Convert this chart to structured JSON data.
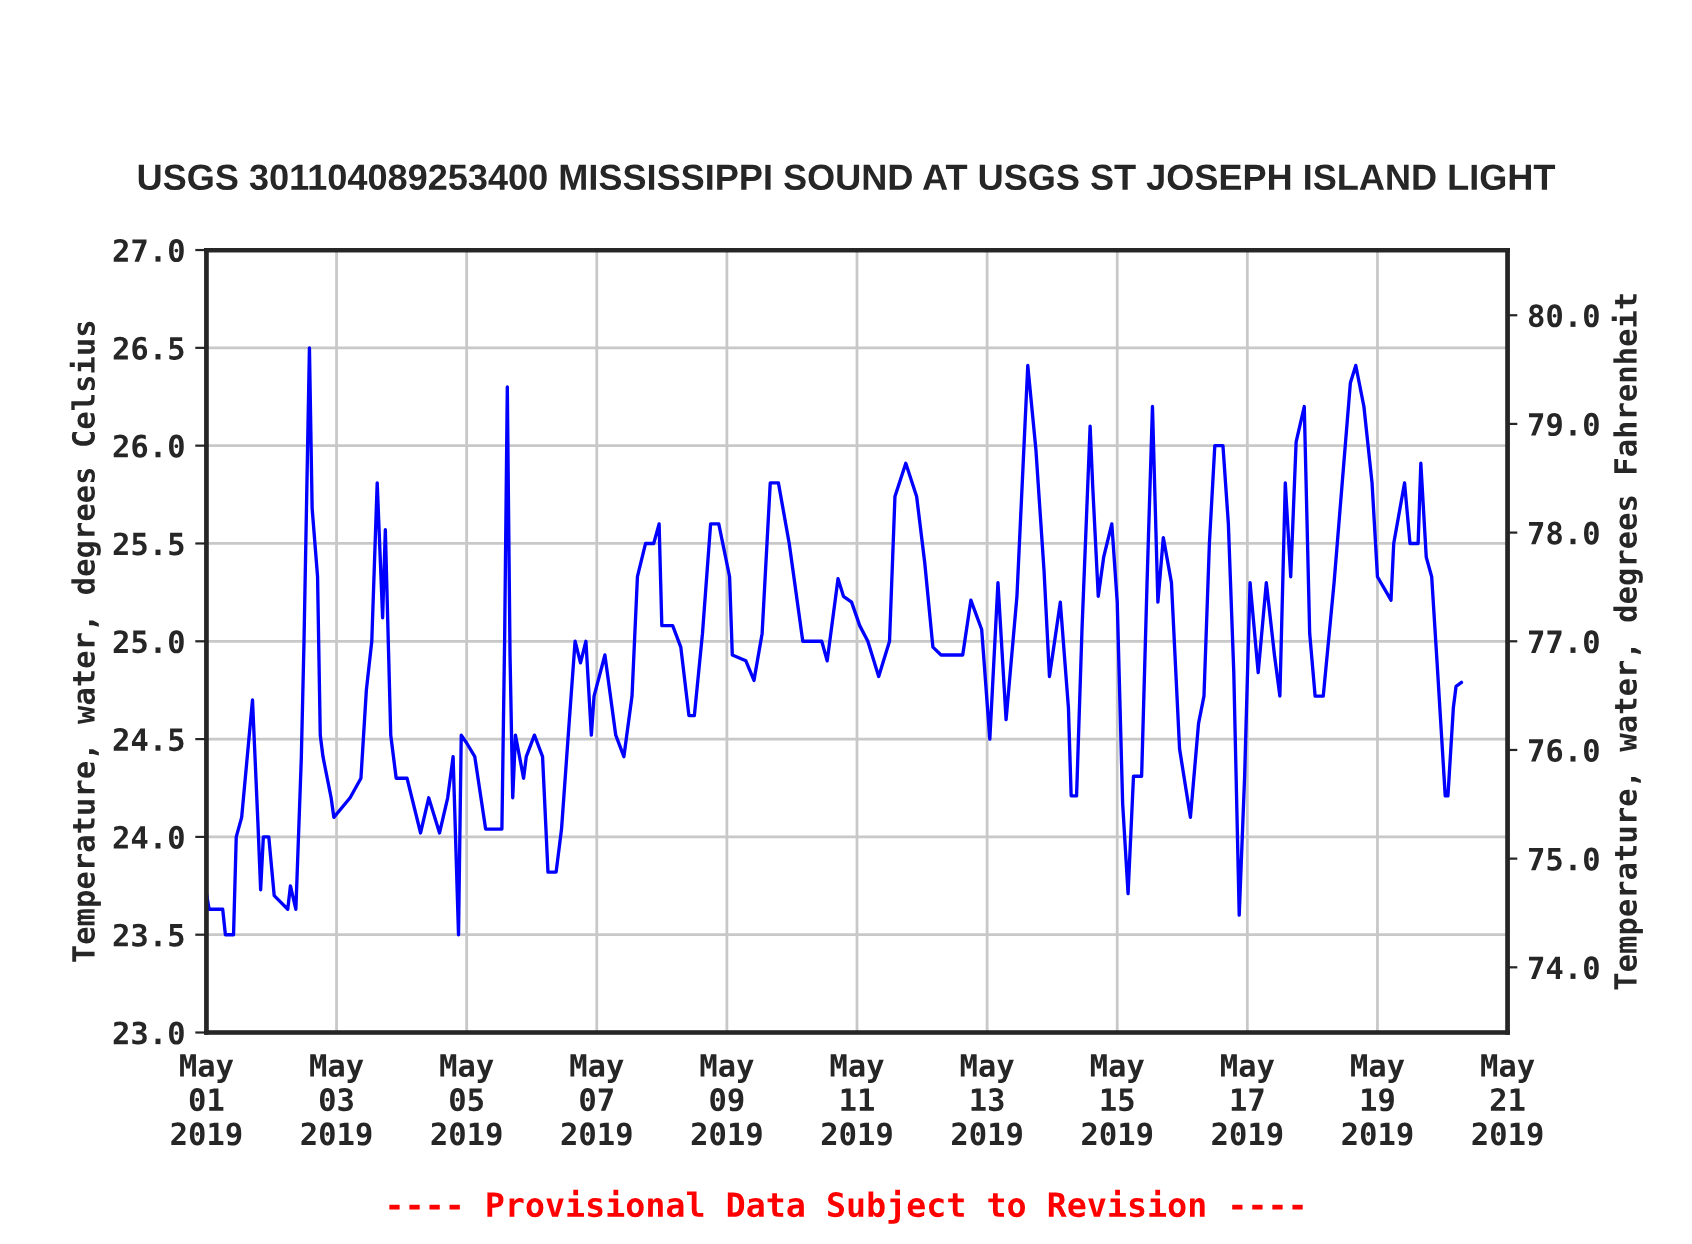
{
  "chart_data": {
    "type": "line",
    "title": "USGS 301104089253400 MISSISSIPPI SOUND AT USGS ST JOSEPH ISLAND LIGHT",
    "ylabel": "Temperature, water, degrees Celsius",
    "y2label": "Temperature, water, degrees Fahrenheit",
    "annotations": [
      "---- Provisional Data Subject to Revision ----"
    ],
    "x": [
      "2019-05-01T00:00",
      "2019-05-01T01:00",
      "2019-05-01T06:00",
      "2019-05-01T07:00",
      "2019-05-01T10:00",
      "2019-05-01T11:00",
      "2019-05-01T13:00",
      "2019-05-01T17:00",
      "2019-05-01T19:00",
      "2019-05-01T20:00",
      "2019-05-01T21:00",
      "2019-05-01T23:00",
      "2019-05-02T01:00",
      "2019-05-02T06:00",
      "2019-05-02T07:00",
      "2019-05-02T09:00",
      "2019-05-02T11:00",
      "2019-05-02T12:00",
      "2019-05-02T14:00",
      "2019-05-02T15:00",
      "2019-05-02T17:00",
      "2019-05-02T18:00",
      "2019-05-02T19:00",
      "2019-05-02T22:00",
      "2019-05-02T23:00",
      "2019-05-03T05:00",
      "2019-05-03T09:00",
      "2019-05-03T11:00",
      "2019-05-03T13:00",
      "2019-05-03T15:00",
      "2019-05-03T17:00",
      "2019-05-03T18:00",
      "2019-05-03T20:00",
      "2019-05-03T22:00",
      "2019-05-04T02:00",
      "2019-05-04T07:00",
      "2019-05-04T10:00",
      "2019-05-04T14:00",
      "2019-05-04T17:00",
      "2019-05-04T19:00",
      "2019-05-04T21:00",
      "2019-05-04T22:00",
      "2019-05-05T00:00",
      "2019-05-05T03:00",
      "2019-05-05T07:00",
      "2019-05-05T13:00",
      "2019-05-05T14:00",
      "2019-05-05T15:00",
      "2019-05-05T16:00",
      "2019-05-05T17:00",
      "2019-05-05T18:00",
      "2019-05-05T21:00",
      "2019-05-05T22:00",
      "2019-05-06T01:00",
      "2019-05-06T04:00",
      "2019-05-06T06:00",
      "2019-05-06T09:00",
      "2019-05-06T11:00",
      "2019-05-06T14:00",
      "2019-05-06T16:00",
      "2019-05-06T18:00",
      "2019-05-06T20:00",
      "2019-05-06T22:00",
      "2019-05-06T23:00",
      "2019-05-07T03:00",
      "2019-05-07T07:00",
      "2019-05-07T10:00",
      "2019-05-07T13:00",
      "2019-05-07T15:00",
      "2019-05-07T18:00",
      "2019-05-07T21:00",
      "2019-05-07T23:00",
      "2019-05-08T00:00",
      "2019-05-08T04:00",
      "2019-05-08T07:00",
      "2019-05-08T10:00",
      "2019-05-08T12:00",
      "2019-05-08T15:00",
      "2019-05-08T18:00",
      "2019-05-08T21:00",
      "2019-05-09T01:00",
      "2019-05-09T02:00",
      "2019-05-09T07:00",
      "2019-05-09T10:00",
      "2019-05-09T13:00",
      "2019-05-09T16:00",
      "2019-05-09T19:00",
      "2019-05-09T23:00",
      "2019-05-10T04:00",
      "2019-05-10T11:00",
      "2019-05-10T13:00",
      "2019-05-10T17:00",
      "2019-05-10T19:00",
      "2019-05-10T22:00",
      "2019-05-11T01:00",
      "2019-05-11T04:00",
      "2019-05-11T08:00",
      "2019-05-11T12:00",
      "2019-05-11T14:00",
      "2019-05-11T18:00",
      "2019-05-11T22:00",
      "2019-05-12T01:00",
      "2019-05-12T04:00",
      "2019-05-12T07:00",
      "2019-05-12T15:00",
      "2019-05-12T18:00",
      "2019-05-12T22:00",
      "2019-05-13T01:00",
      "2019-05-13T04:00",
      "2019-05-13T07:00",
      "2019-05-13T11:00",
      "2019-05-13T13:00",
      "2019-05-13T15:00",
      "2019-05-13T18:00",
      "2019-05-13T21:00",
      "2019-05-13T23:00",
      "2019-05-14T03:00",
      "2019-05-14T06:00",
      "2019-05-14T07:00",
      "2019-05-14T09:00",
      "2019-05-14T11:00",
      "2019-05-14T14:00",
      "2019-05-14T15:00",
      "2019-05-14T17:00",
      "2019-05-14T19:00",
      "2019-05-14T22:00",
      "2019-05-15T00:00",
      "2019-05-15T02:00",
      "2019-05-15T04:00",
      "2019-05-15T06:00",
      "2019-05-15T09:00",
      "2019-05-15T11:00",
      "2019-05-15T13:00",
      "2019-05-15T15:00",
      "2019-05-15T17:00",
      "2019-05-15T20:00",
      "2019-05-15T23:00",
      "2019-05-16T03:00",
      "2019-05-16T06:00",
      "2019-05-16T08:00",
      "2019-05-16T10:00",
      "2019-05-16T12:00",
      "2019-05-16T15:00",
      "2019-05-16T17:00",
      "2019-05-16T19:00",
      "2019-05-16T21:00",
      "2019-05-16T23:00",
      "2019-05-17T01:00",
      "2019-05-17T04:00",
      "2019-05-17T07:00",
      "2019-05-17T10:00",
      "2019-05-17T12:00",
      "2019-05-17T14:00",
      "2019-05-17T16:00",
      "2019-05-17T18:00",
      "2019-05-17T21:00",
      "2019-05-17T23:00",
      "2019-05-18T01:00",
      "2019-05-18T04:00",
      "2019-05-18T08:00",
      "2019-05-18T11:00",
      "2019-05-18T14:00",
      "2019-05-18T16:00",
      "2019-05-18T19:00",
      "2019-05-18T22:00",
      "2019-05-19T00:00",
      "2019-05-19T05:00",
      "2019-05-19T06:00",
      "2019-05-19T10:00",
      "2019-05-19T12:00",
      "2019-05-19T15:00",
      "2019-05-19T16:00",
      "2019-05-19T18:00",
      "2019-05-19T20:00",
      "2019-05-19T22:00",
      "2019-05-20T01:00",
      "2019-05-20T02:00",
      "2019-05-20T04:00",
      "2019-05-20T05:00",
      "2019-05-20T07:00"
    ],
    "series": [
      {
        "color": "#0000ff",
        "values": [
          23.71,
          23.63,
          23.63,
          23.5,
          23.5,
          24.0,
          24.1,
          24.7,
          24.07,
          23.73,
          24.0,
          24.0,
          23.7,
          23.63,
          23.75,
          23.63,
          24.4,
          25.0,
          26.5,
          25.68,
          25.33,
          24.52,
          24.41,
          24.2,
          24.1,
          24.2,
          24.3,
          24.75,
          25.0,
          25.81,
          25.12,
          25.57,
          24.52,
          24.3,
          24.3,
          24.02,
          24.2,
          24.02,
          24.2,
          24.41,
          23.5,
          24.52,
          24.48,
          24.41,
          24.04,
          24.04,
          25.0,
          26.3,
          24.93,
          24.2,
          24.52,
          24.3,
          24.41,
          24.52,
          24.41,
          23.82,
          23.82,
          24.04,
          24.62,
          25.0,
          24.89,
          25.0,
          24.52,
          24.72,
          24.93,
          24.52,
          24.41,
          24.72,
          25.33,
          25.5,
          25.5,
          25.6,
          25.08,
          25.08,
          24.97,
          24.62,
          24.62,
          25.04,
          25.6,
          25.6,
          25.33,
          24.93,
          24.9,
          24.8,
          25.04,
          25.81,
          25.81,
          25.5,
          25.0,
          25.0,
          24.9,
          25.32,
          25.23,
          25.2,
          25.08,
          25.0,
          24.82,
          25.0,
          25.74,
          25.91,
          25.74,
          25.4,
          24.97,
          24.93,
          24.93,
          25.21,
          25.06,
          24.5,
          25.3,
          24.6,
          25.23,
          25.82,
          26.41,
          25.98,
          25.36,
          24.82,
          25.2,
          24.66,
          24.21,
          24.21,
          25.06,
          26.1,
          25.78,
          25.23,
          25.43,
          25.6,
          25.2,
          24.17,
          23.71,
          24.31,
          24.31,
          25.3,
          26.2,
          25.2,
          25.53,
          25.3,
          24.45,
          24.1,
          24.58,
          24.72,
          25.5,
          26.0,
          26.0,
          25.6,
          24.84,
          23.6,
          24.31,
          25.3,
          24.84,
          25.3,
          24.93,
          24.72,
          25.81,
          25.33,
          26.02,
          26.2,
          25.04,
          24.72,
          24.72,
          25.3,
          25.81,
          26.32,
          26.41,
          26.2,
          25.81,
          25.33,
          25.21,
          25.5,
          25.81,
          25.5,
          25.5,
          25.91,
          25.43,
          25.33,
          24.89,
          24.21,
          24.21,
          24.66,
          24.77,
          24.79
        ]
      }
    ],
    "xlim": [
      "2019-05-01",
      "2019-05-21"
    ],
    "xticks": [
      {
        "value": "2019-05-01",
        "label": "May\n01\n2019"
      },
      {
        "value": "2019-05-03",
        "label": "May\n03\n2019"
      },
      {
        "value": "2019-05-05",
        "label": "May\n05\n2019"
      },
      {
        "value": "2019-05-07",
        "label": "May\n07\n2019"
      },
      {
        "value": "2019-05-09",
        "label": "May\n09\n2019"
      },
      {
        "value": "2019-05-11",
        "label": "May\n11\n2019"
      },
      {
        "value": "2019-05-13",
        "label": "May\n13\n2019"
      },
      {
        "value": "2019-05-15",
        "label": "May\n15\n2019"
      },
      {
        "value": "2019-05-17",
        "label": "May\n17\n2019"
      },
      {
        "value": "2019-05-19",
        "label": "May\n19\n2019"
      },
      {
        "value": "2019-05-21",
        "label": "May\n21\n2019"
      }
    ],
    "ylim": [
      23,
      27
    ],
    "yticks": [
      {
        "value": 23,
        "label": "23.0"
      },
      {
        "value": 23.5,
        "label": "23.5"
      },
      {
        "value": 24,
        "label": "24.0"
      },
      {
        "value": 24.5,
        "label": "24.5"
      },
      {
        "value": 25,
        "label": "25.0"
      },
      {
        "value": 25.5,
        "label": "25.5"
      },
      {
        "value": 26,
        "label": "26.0"
      },
      {
        "value": 26.5,
        "label": "26.5"
      },
      {
        "value": 27,
        "label": "27.0"
      }
    ],
    "y2lim": [
      73.4,
      80.6
    ],
    "y2ticks": [
      {
        "value": 74,
        "label": "74.0"
      },
      {
        "value": 75,
        "label": "75.0"
      },
      {
        "value": 76,
        "label": "76.0"
      },
      {
        "value": 77,
        "label": "77.0"
      },
      {
        "value": 78,
        "label": "78.0"
      },
      {
        "value": 79,
        "label": "79.0"
      },
      {
        "value": 80,
        "label": "80.0"
      }
    ],
    "grid": true,
    "marker": "none",
    "line_style": "solid"
  }
}
